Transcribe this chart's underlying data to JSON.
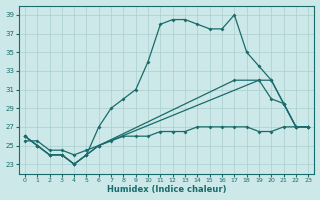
{
  "xlabel": "Humidex (Indice chaleur)",
  "bg_color": "#cde8e8",
  "grid_color": "#aacfcf",
  "line_color": "#1a6b6b",
  "xlim": [
    -0.5,
    23.5
  ],
  "ylim": [
    22.0,
    40.0
  ],
  "yticks": [
    23,
    25,
    27,
    29,
    31,
    33,
    35,
    37,
    39
  ],
  "xticks": [
    0,
    1,
    2,
    3,
    4,
    5,
    6,
    7,
    8,
    9,
    10,
    11,
    12,
    13,
    14,
    15,
    16,
    17,
    18,
    19,
    20,
    21,
    22,
    23
  ],
  "s1x": [
    0,
    1,
    2,
    3,
    4,
    5,
    6,
    7,
    8,
    9,
    10,
    11,
    12,
    13,
    14,
    15,
    16,
    17,
    18,
    19,
    20,
    21,
    22,
    23
  ],
  "s1y": [
    26,
    25,
    24,
    24,
    23,
    24,
    27,
    29,
    30,
    31,
    34,
    38,
    38.5,
    38.5,
    38,
    37.5,
    37.5,
    39,
    35,
    33.5,
    32,
    29.5,
    27,
    27
  ],
  "s2x": [
    0,
    1,
    2,
    3,
    4,
    5,
    6,
    17,
    19,
    20,
    21,
    22,
    23
  ],
  "s2y": [
    26,
    25,
    24,
    24,
    23,
    24,
    25,
    32,
    32,
    32,
    29.5,
    27,
    27
  ],
  "s3x": [
    0,
    1,
    2,
    3,
    4,
    5,
    6,
    19,
    20,
    21,
    22,
    23
  ],
  "s3y": [
    26,
    25,
    24,
    24,
    23,
    24,
    25,
    32,
    30,
    29.5,
    27,
    27
  ],
  "s4x": [
    0,
    1,
    2,
    3,
    4,
    5,
    6,
    7,
    8,
    9,
    10,
    11,
    12,
    13,
    14,
    15,
    16,
    17,
    18,
    19,
    20,
    21,
    22,
    23
  ],
  "s4y": [
    25.5,
    25.5,
    24.5,
    24.5,
    24.0,
    24.5,
    25.0,
    25.5,
    26.0,
    26.0,
    26.0,
    26.5,
    26.5,
    26.5,
    27.0,
    27.0,
    27.0,
    27.0,
    27.0,
    26.5,
    26.5,
    27.0,
    27.0,
    27.0
  ]
}
